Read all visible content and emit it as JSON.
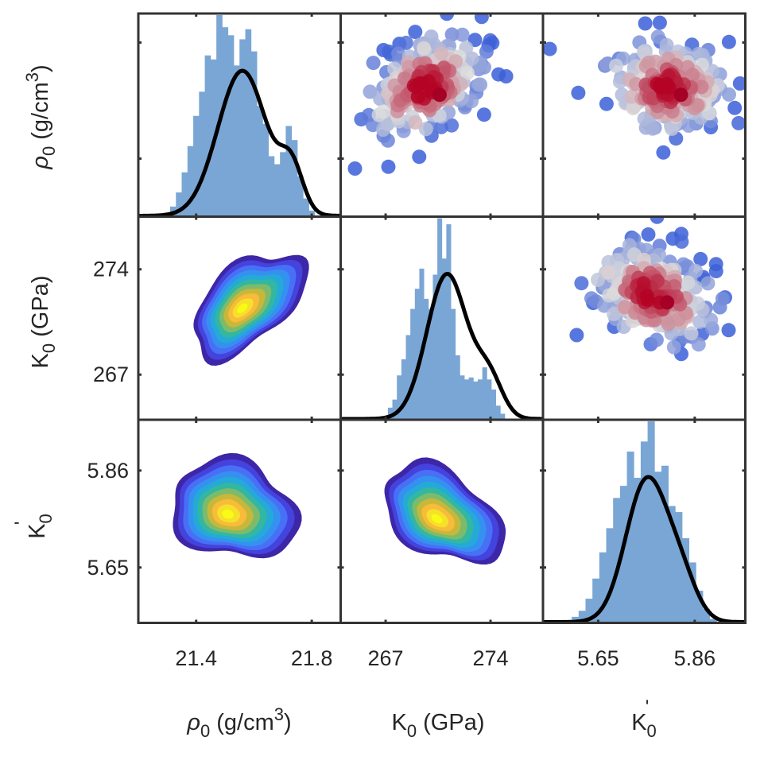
{
  "chart_data": {
    "type": "corner-plot",
    "title": "",
    "variables": [
      {
        "key": "rho0",
        "label_main": "ρ",
        "label_sub": "0",
        "label_unit": " (g/cm",
        "label_sup": "3",
        "label_close": ")",
        "range": [
          21.2,
          21.9
        ],
        "ticks": [
          21.4,
          21.8
        ],
        "tick_labels": [
          "21.4",
          "21.8"
        ]
      },
      {
        "key": "K0",
        "label_main": "K",
        "label_sub": "0",
        "label_unit": " (GPa)",
        "label_sup": "",
        "label_close": "",
        "range": [
          264.0,
          277.5
        ],
        "ticks": [
          267,
          274
        ],
        "tick_labels": [
          "267",
          "274"
        ]
      },
      {
        "key": "K0p",
        "label_main": "K",
        "label_sub": "0",
        "label_unit": "",
        "label_sup": "'",
        "label_close": "",
        "range": [
          5.53,
          5.97
        ],
        "ticks": [
          5.65,
          5.86
        ],
        "tick_labels": [
          "5.65",
          "5.86"
        ]
      }
    ],
    "marginals": [
      {
        "var": "rho0",
        "type": "histogram+kde",
        "kde_peak": 21.56,
        "kde_sigma": 0.085,
        "kde_secondary_peak": 21.73,
        "kde_secondary_weight": 0.3,
        "kde_secondary_sigma": 0.04,
        "hist_bins": [
          [
            21.3,
            0.02
          ],
          [
            21.32,
            0.05
          ],
          [
            21.34,
            0.12
          ],
          [
            21.36,
            0.22
          ],
          [
            21.38,
            0.35
          ],
          [
            21.4,
            0.5
          ],
          [
            21.42,
            0.62
          ],
          [
            21.44,
            0.8
          ],
          [
            21.46,
            0.78
          ],
          [
            21.48,
            1.0
          ],
          [
            21.5,
            0.94
          ],
          [
            21.52,
            0.9
          ],
          [
            21.54,
            0.75
          ],
          [
            21.56,
            0.88
          ],
          [
            21.58,
            0.93
          ],
          [
            21.6,
            0.82
          ],
          [
            21.62,
            0.55
          ],
          [
            21.64,
            0.46
          ],
          [
            21.66,
            0.3
          ],
          [
            21.68,
            0.26
          ],
          [
            21.7,
            0.32
          ],
          [
            21.72,
            0.45
          ],
          [
            21.74,
            0.38
          ],
          [
            21.76,
            0.2
          ],
          [
            21.78,
            0.09
          ],
          [
            21.8,
            0.03
          ]
        ]
      },
      {
        "var": "K0",
        "type": "histogram+kde",
        "kde_peak": 271.1,
        "kde_sigma": 1.35,
        "kde_secondary_peak": 273.9,
        "kde_secondary_weight": 0.27,
        "kde_secondary_sigma": 0.9,
        "hist_bins": [
          [
            267.3,
            0.06
          ],
          [
            267.6,
            0.1
          ],
          [
            267.9,
            0.22
          ],
          [
            268.2,
            0.3
          ],
          [
            268.5,
            0.42
          ],
          [
            268.8,
            0.55
          ],
          [
            269.1,
            0.65
          ],
          [
            269.4,
            0.75
          ],
          [
            269.7,
            0.6
          ],
          [
            270.0,
            0.55
          ],
          [
            270.3,
            0.72
          ],
          [
            270.6,
            1.0
          ],
          [
            270.9,
            0.8
          ],
          [
            271.2,
            0.97
          ],
          [
            271.5,
            0.55
          ],
          [
            271.8,
            0.32
          ],
          [
            272.1,
            0.22
          ],
          [
            272.4,
            0.2
          ],
          [
            272.7,
            0.21
          ],
          [
            273.0,
            0.19
          ],
          [
            273.3,
            0.2
          ],
          [
            273.6,
            0.26
          ],
          [
            273.9,
            0.2
          ],
          [
            274.2,
            0.15
          ],
          [
            274.5,
            0.07
          ],
          [
            274.8,
            0.03
          ]
        ]
      },
      {
        "var": "K0p",
        "type": "histogram+kde",
        "kde_peak": 5.755,
        "kde_sigma": 0.045,
        "kde_secondary_peak": 5.83,
        "kde_secondary_weight": 0.28,
        "kde_secondary_sigma": 0.035,
        "hist_bins": [
          [
            5.6,
            0.03
          ],
          [
            5.615,
            0.06
          ],
          [
            5.63,
            0.12
          ],
          [
            5.645,
            0.22
          ],
          [
            5.66,
            0.35
          ],
          [
            5.675,
            0.47
          ],
          [
            5.69,
            0.62
          ],
          [
            5.705,
            0.68
          ],
          [
            5.72,
            0.85
          ],
          [
            5.735,
            0.72
          ],
          [
            5.75,
            0.9
          ],
          [
            5.765,
            1.0
          ],
          [
            5.78,
            0.75
          ],
          [
            5.795,
            0.78
          ],
          [
            5.81,
            0.58
          ],
          [
            5.825,
            0.55
          ],
          [
            5.84,
            0.42
          ],
          [
            5.855,
            0.3
          ],
          [
            5.87,
            0.16
          ],
          [
            5.885,
            0.07
          ],
          [
            5.9,
            0.02
          ]
        ]
      }
    ],
    "lower_kde2d": [
      {
        "x": "rho0",
        "y": "K0",
        "type": "filled-contour",
        "center": [
          21.58,
          271.7
        ],
        "corr": 0.75,
        "colormap": "parula"
      },
      {
        "x": "rho0",
        "y": "K0p",
        "type": "filled-contour",
        "center": [
          21.53,
          5.775
        ],
        "corr": -0.3,
        "colormap": "parula"
      },
      {
        "x": "K0",
        "y": "K0p",
        "type": "filled-contour",
        "center": [
          270.8,
          5.765
        ],
        "corr": -0.6,
        "colormap": "parula"
      }
    ],
    "upper_scatter": [
      {
        "x": "K0",
        "y": "rho0",
        "type": "scatter",
        "colormap": "coolwarm",
        "highlight_point": [
          270.6,
          21.62
        ],
        "corr": 0.75
      },
      {
        "x": "K0p",
        "y": "rho0",
        "type": "scatter",
        "colormap": "coolwarm",
        "highlight_point": [
          5.83,
          21.62
        ],
        "corr": -0.2
      },
      {
        "x": "K0p",
        "y": "K0",
        "type": "scatter",
        "colormap": "coolwarm",
        "highlight_point": [
          5.8,
          271.8
        ],
        "corr": -0.6
      }
    ],
    "colors": {
      "hist": "#7aa6d5",
      "kde_line": "#000000",
      "frame": "#333333",
      "highlight": "#a50026",
      "parula": [
        "#3e26a8",
        "#4443dd",
        "#4870f6",
        "#3591f0",
        "#25aad8",
        "#33b7a0",
        "#7dbb6b",
        "#c8b83a",
        "#f8bb3a",
        "#f5e12a",
        "#f9fb15"
      ],
      "coolwarm_low": "#3b5fd8",
      "coolwarm_mid": "#dcdcdc",
      "coolwarm_high": "#b40426"
    },
    "legend": "none",
    "grid": false
  }
}
